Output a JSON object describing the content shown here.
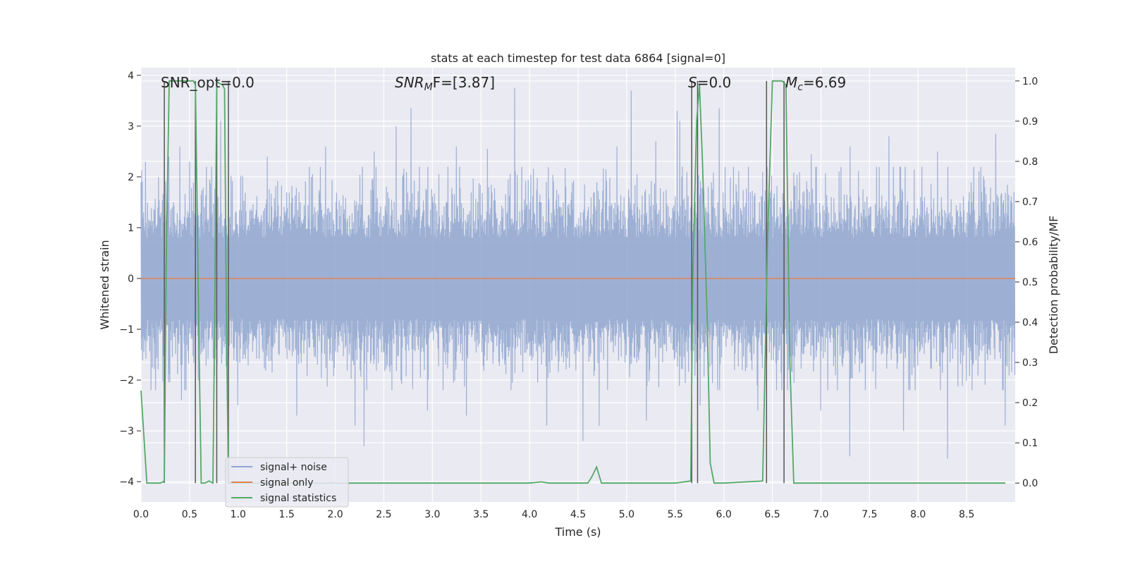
{
  "chart_data": {
    "type": "line",
    "title": "stats at each timestep for test data 6864 [signal=0]",
    "xlabel": "Time (s)",
    "ylabel_left": "Whitened strain",
    "ylabel_right": "Detection probability/MF",
    "xlim": [
      0.0,
      9.0
    ],
    "ylim_left": [
      -4.4,
      4.15
    ],
    "ylim_right": [
      -0.047,
      1.033
    ],
    "x_ticks": [
      0.0,
      0.5,
      1.0,
      1.5,
      2.0,
      2.5,
      3.0,
      3.5,
      4.0,
      4.5,
      5.0,
      5.5,
      6.0,
      6.5,
      7.0,
      7.5,
      8.0,
      8.5
    ],
    "x_tick_labels": [
      "0.0",
      "0.5",
      "1.0",
      "1.5",
      "2.0",
      "2.5",
      "3.0",
      "3.5",
      "4.0",
      "4.5",
      "5.0",
      "5.5",
      "6.0",
      "6.5",
      "7.0",
      "7.5",
      "8.0",
      "8.5"
    ],
    "y_left_ticks": [
      -4,
      -3,
      -2,
      -1,
      0,
      1,
      2,
      3,
      4
    ],
    "y_left_tick_labels": [
      "−4",
      "−3",
      "−2",
      "−1",
      "0",
      "1",
      "2",
      "3",
      "4"
    ],
    "y_right_ticks": [
      0.0,
      0.1,
      0.2,
      0.3,
      0.4,
      0.5,
      0.6,
      0.7,
      0.8,
      0.9,
      1.0
    ],
    "y_right_tick_labels": [
      "0.0",
      "0.1",
      "0.2",
      "0.3",
      "0.4",
      "0.5",
      "0.6",
      "0.7",
      "0.8",
      "0.9",
      "1.0"
    ],
    "grid": true,
    "legend_placement": "lower-left",
    "annotations": {
      "snr_opt": "SNR_opt=0.0",
      "snr_mf_base": "SNR",
      "snr_mf_sub": "M",
      "snr_mf_rest": "F=[3.87]",
      "s_var": "S",
      "s_rest": "=0.0",
      "mc_base": "M",
      "mc_sub": "c",
      "mc_rest": "=6.69"
    },
    "series": [
      {
        "name": "signal+ noise",
        "color": "#8fa6cf",
        "axis": "left",
        "style": "noise",
        "sample_rate_hz": 300,
        "typical_amplitude": 1.45,
        "peaks": [
          {
            "x": 0.05,
            "y": 2.3
          },
          {
            "x": 0.18,
            "y": 2.0
          },
          {
            "x": 0.29,
            "y": 2.4
          },
          {
            "x": 0.4,
            "y": 2.6
          },
          {
            "x": 0.5,
            "y": 2.3
          },
          {
            "x": 0.67,
            "y": 2.2
          },
          {
            "x": 0.82,
            "y": 3.1
          },
          {
            "x": 1.3,
            "y": 2.4
          },
          {
            "x": 1.9,
            "y": 2.6
          },
          {
            "x": 2.4,
            "y": 2.5
          },
          {
            "x": 2.63,
            "y": 3.0
          },
          {
            "x": 2.78,
            "y": 3.35
          },
          {
            "x": 3.25,
            "y": 2.6
          },
          {
            "x": 3.57,
            "y": 2.55
          },
          {
            "x": 3.85,
            "y": 3.75
          },
          {
            "x": 4.9,
            "y": 2.6
          },
          {
            "x": 5.05,
            "y": 3.7
          },
          {
            "x": 5.3,
            "y": 2.7
          },
          {
            "x": 5.52,
            "y": 3.3
          },
          {
            "x": 5.55,
            "y": 3.1
          },
          {
            "x": 5.95,
            "y": 3.35
          },
          {
            "x": 6.4,
            "y": 2.1
          },
          {
            "x": 6.9,
            "y": 2.45
          },
          {
            "x": 7.3,
            "y": 2.6
          },
          {
            "x": 7.7,
            "y": 2.8
          },
          {
            "x": 8.2,
            "y": 2.5
          },
          {
            "x": 8.8,
            "y": 2.85
          }
        ],
        "troughs": [
          {
            "x": 0.1,
            "y": -2.2
          },
          {
            "x": 0.42,
            "y": -2.4
          },
          {
            "x": 1.0,
            "y": -2.5
          },
          {
            "x": 1.6,
            "y": -2.7
          },
          {
            "x": 2.2,
            "y": -2.9
          },
          {
            "x": 2.3,
            "y": -3.3
          },
          {
            "x": 2.95,
            "y": -2.6
          },
          {
            "x": 3.35,
            "y": -2.7
          },
          {
            "x": 4.18,
            "y": -2.9
          },
          {
            "x": 4.55,
            "y": -3.2
          },
          {
            "x": 4.72,
            "y": -2.9
          },
          {
            "x": 5.2,
            "y": -2.8
          },
          {
            "x": 5.76,
            "y": -2.5
          },
          {
            "x": 6.35,
            "y": -2.6
          },
          {
            "x": 7.0,
            "y": -2.6
          },
          {
            "x": 7.3,
            "y": -3.5
          },
          {
            "x": 7.85,
            "y": -3.0
          },
          {
            "x": 8.3,
            "y": -3.55
          },
          {
            "x": 8.9,
            "y": -2.9
          }
        ]
      },
      {
        "name": "signal only",
        "color": "#dd8452",
        "axis": "left",
        "x": [
          0.0,
          9.0
        ],
        "y": [
          0.0,
          0.0
        ]
      },
      {
        "name": "signal statistics",
        "color": "#55a868",
        "axis": "right",
        "x": [
          0.0,
          0.06,
          0.1,
          0.15,
          0.2,
          0.24,
          0.26,
          0.29,
          0.33,
          0.4,
          0.5,
          0.54,
          0.56,
          0.6,
          0.62,
          0.66,
          0.7,
          0.74,
          0.76,
          0.78,
          0.8,
          0.84,
          0.86,
          0.88,
          0.9,
          0.92,
          0.95,
          1.0,
          4.0,
          4.12,
          4.2,
          4.6,
          4.64,
          4.69,
          4.74,
          4.8,
          5.5,
          5.66,
          5.68,
          5.72,
          5.75,
          5.78,
          5.83,
          5.86,
          5.9,
          6.0,
          6.4,
          6.45,
          6.5,
          6.56,
          6.6,
          6.64,
          6.68,
          6.72,
          7.0,
          7.2,
          7.4,
          7.5,
          8.9
        ],
        "y": [
          0.23,
          0.0,
          0.0,
          0.0,
          0.0,
          0.005,
          0.55,
          1.0,
          1.0,
          1.0,
          1.0,
          1.0,
          0.99,
          0.3,
          0.0,
          0.0,
          0.005,
          0.0,
          0.45,
          1.0,
          0.995,
          0.99,
          0.98,
          0.4,
          0.0,
          0.0,
          0.0,
          0.0,
          0.0,
          0.003,
          0.0,
          0.0,
          0.015,
          0.04,
          0.0,
          0.0,
          0.0,
          0.005,
          0.5,
          0.9,
          0.99,
          0.8,
          0.4,
          0.05,
          0.0,
          0.0,
          0.005,
          0.6,
          1.0,
          1.0,
          1.0,
          0.99,
          0.3,
          0.0,
          0.0,
          0.0,
          0.0,
          0.0,
          0.0
        ]
      }
    ],
    "vertical_markers": {
      "color": "#555555",
      "axis": "right",
      "x": [
        0.24,
        0.56,
        0.78,
        0.9,
        5.67,
        5.73,
        6.44,
        6.62
      ],
      "y_range": [
        0.0,
        1.0
      ]
    }
  }
}
